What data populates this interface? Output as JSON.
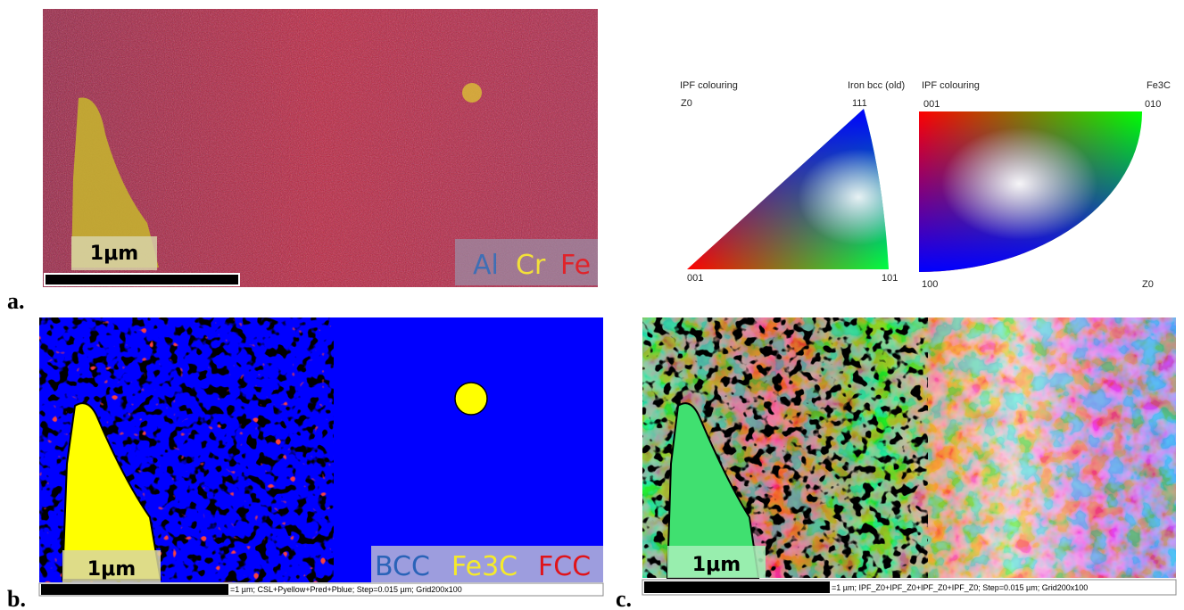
{
  "panels": [
    {
      "label": "a.",
      "scale_bar": "1μm",
      "legend": [
        {
          "text": "Al",
          "color": "#3f6fb5"
        },
        {
          "text": "Cr",
          "color": "#f2e03a"
        },
        {
          "text": "Fe",
          "color": "#e0232a"
        }
      ]
    },
    {
      "label": "b.",
      "scale_bar": "1μm",
      "legend": [
        {
          "text": "BCC",
          "color": "#2a63b8"
        },
        {
          "text": "Fe3C",
          "color": "#f5ea2a"
        },
        {
          "text": "FCC",
          "color": "#e0141a"
        }
      ],
      "caption": "=1 µm; CSL+Pyellow+Pred+Pblue; Step=0.015 µm; Grid200x100"
    },
    {
      "label": "c.",
      "scale_bar": "1μm",
      "caption": "=1 µm; IPF_Z0+IPF_Z0+IPF_Z0+IPF_Z0; Step=0.015 µm; Grid200x100"
    }
  ],
  "ipf_keys": [
    {
      "title": "IPF colouring",
      "phase": "Iron bcc (old)",
      "direction": "Z0",
      "top": "111",
      "bottom_left": "001",
      "bottom_right": "101"
    },
    {
      "title": "IPF colouring",
      "phase": "Fe3C",
      "top_left": "001",
      "top_right": "010",
      "bottom_left": "100",
      "direction": "Z0"
    }
  ]
}
